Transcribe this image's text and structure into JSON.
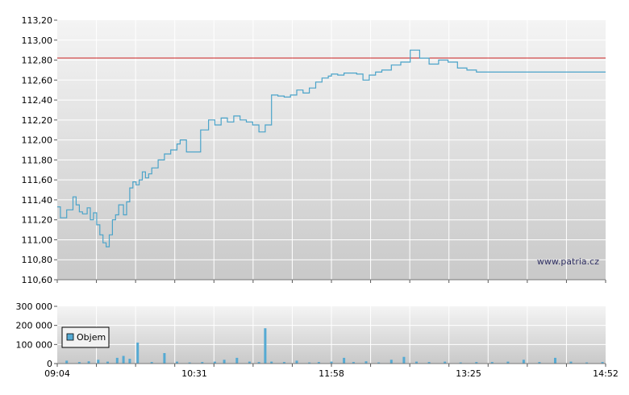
{
  "watermark": "www.patria.cz",
  "colors": {
    "line": "#4aa3c9",
    "reference": "#cc2222",
    "bar": "#55aad3",
    "grid": "#ffffff",
    "plot_top": "#f4f4f4",
    "plot_bottom": "#c9c9c9"
  },
  "chart_data": [
    {
      "type": "line",
      "title": "",
      "xlabel": "",
      "ylabel": "",
      "x_range": [
        "09:04",
        "14:52"
      ],
      "ylim": [
        110.6,
        113.2
      ],
      "y_ticks": [
        "113,20",
        "113,00",
        "112,80",
        "112,60",
        "112,40",
        "112,20",
        "112,00",
        "111,80",
        "111,60",
        "111,40",
        "111,20",
        "111,00",
        "110,80",
        "110,60"
      ],
      "reference_line": 112.82,
      "grid": true,
      "series": [
        {
          "x": [
            "09:04",
            "09:06",
            "09:10",
            "09:14",
            "09:16",
            "09:18",
            "09:20",
            "09:23",
            "09:25",
            "09:27",
            "09:29",
            "09:31",
            "09:33",
            "09:35",
            "09:37",
            "09:39",
            "09:41",
            "09:43",
            "09:46",
            "09:48",
            "09:50",
            "09:52",
            "09:54",
            "09:56",
            "09:58",
            "10:00",
            "10:02",
            "10:04",
            "10:08",
            "10:12",
            "10:16",
            "10:20",
            "10:22",
            "10:26",
            "10:30",
            "10:35",
            "10:40",
            "10:44",
            "10:48",
            "10:52",
            "10:56",
            "11:00",
            "11:04",
            "11:08",
            "11:12",
            "11:16",
            "11:20",
            "11:24",
            "11:28",
            "11:32",
            "11:36",
            "11:40",
            "11:44",
            "11:48",
            "11:52",
            "11:56",
            "11:58",
            "12:02",
            "12:06",
            "12:10",
            "12:14",
            "12:18",
            "12:22",
            "12:26",
            "12:30",
            "12:36",
            "12:42",
            "12:48",
            "12:54",
            "13:00",
            "13:06",
            "13:12",
            "13:18",
            "13:24",
            "13:30",
            "13:36",
            "13:42",
            "13:48",
            "13:54",
            "14:00",
            "14:04",
            "14:08",
            "14:10",
            "14:14",
            "14:18",
            "14:22",
            "14:26",
            "14:30",
            "14:34",
            "14:38",
            "14:42",
            "14:46",
            "14:52"
          ],
          "values": [
            111.33,
            111.22,
            111.3,
            111.43,
            111.35,
            111.28,
            111.26,
            111.32,
            111.2,
            111.27,
            111.15,
            111.05,
            110.97,
            110.93,
            111.05,
            111.2,
            111.25,
            111.35,
            111.25,
            111.38,
            111.52,
            111.58,
            111.55,
            111.6,
            111.68,
            111.62,
            111.66,
            111.72,
            111.8,
            111.86,
            111.9,
            111.96,
            112.0,
            111.88,
            111.88,
            112.1,
            112.2,
            112.15,
            112.22,
            112.18,
            112.24,
            112.2,
            112.18,
            112.15,
            112.08,
            112.15,
            112.45,
            112.44,
            112.43,
            112.45,
            112.5,
            112.47,
            112.52,
            112.58,
            112.62,
            112.64,
            112.66,
            112.65,
            112.67,
            112.67,
            112.66,
            112.6,
            112.65,
            112.68,
            112.7,
            112.75,
            112.78,
            112.9,
            112.82,
            112.76,
            112.8,
            112.78,
            112.72,
            112.7,
            112.68,
            112.68,
            112.68,
            112.68,
            112.68,
            112.68,
            112.68,
            112.68,
            112.68,
            112.68,
            112.68,
            112.68,
            112.68,
            112.68,
            112.68,
            112.68,
            112.68,
            112.68,
            112.68
          ]
        }
      ]
    },
    {
      "type": "bar",
      "title": "",
      "xlabel": "",
      "ylabel": "",
      "ylim": [
        0,
        300000
      ],
      "y_ticks": [
        "300 000",
        "200 000",
        "100 000",
        "0"
      ],
      "x_ticks": [
        "09:04",
        "10:31",
        "11:58",
        "13:25",
        "14:52"
      ],
      "legend": "Objem",
      "legend_position": "left",
      "grid": true,
      "series": [
        {
          "name": "Objem",
          "x": [
            "09:10",
            "09:18",
            "09:24",
            "09:30",
            "09:36",
            "09:42",
            "09:46",
            "09:50",
            "09:55",
            "10:04",
            "10:12",
            "10:20",
            "10:28",
            "10:36",
            "10:44",
            "10:50",
            "10:58",
            "11:06",
            "11:12",
            "11:16",
            "11:20",
            "11:28",
            "11:36",
            "11:44",
            "11:50",
            "11:58",
            "12:06",
            "12:12",
            "12:20",
            "12:28",
            "12:36",
            "12:44",
            "12:52",
            "13:00",
            "13:10",
            "13:20",
            "13:30",
            "13:40",
            "13:50",
            "14:00",
            "14:10",
            "14:20",
            "14:30",
            "14:40",
            "14:50"
          ],
          "values": [
            15000,
            8000,
            12000,
            20000,
            10000,
            30000,
            40000,
            25000,
            110000,
            8000,
            55000,
            10000,
            6000,
            8000,
            10000,
            20000,
            30000,
            10000,
            8000,
            185000,
            10000,
            8000,
            15000,
            6000,
            8000,
            10000,
            30000,
            8000,
            12000,
            6000,
            20000,
            35000,
            10000,
            8000,
            10000,
            6000,
            8000,
            8000,
            10000,
            20000,
            8000,
            30000,
            10000,
            6000,
            8000
          ]
        }
      ]
    }
  ]
}
